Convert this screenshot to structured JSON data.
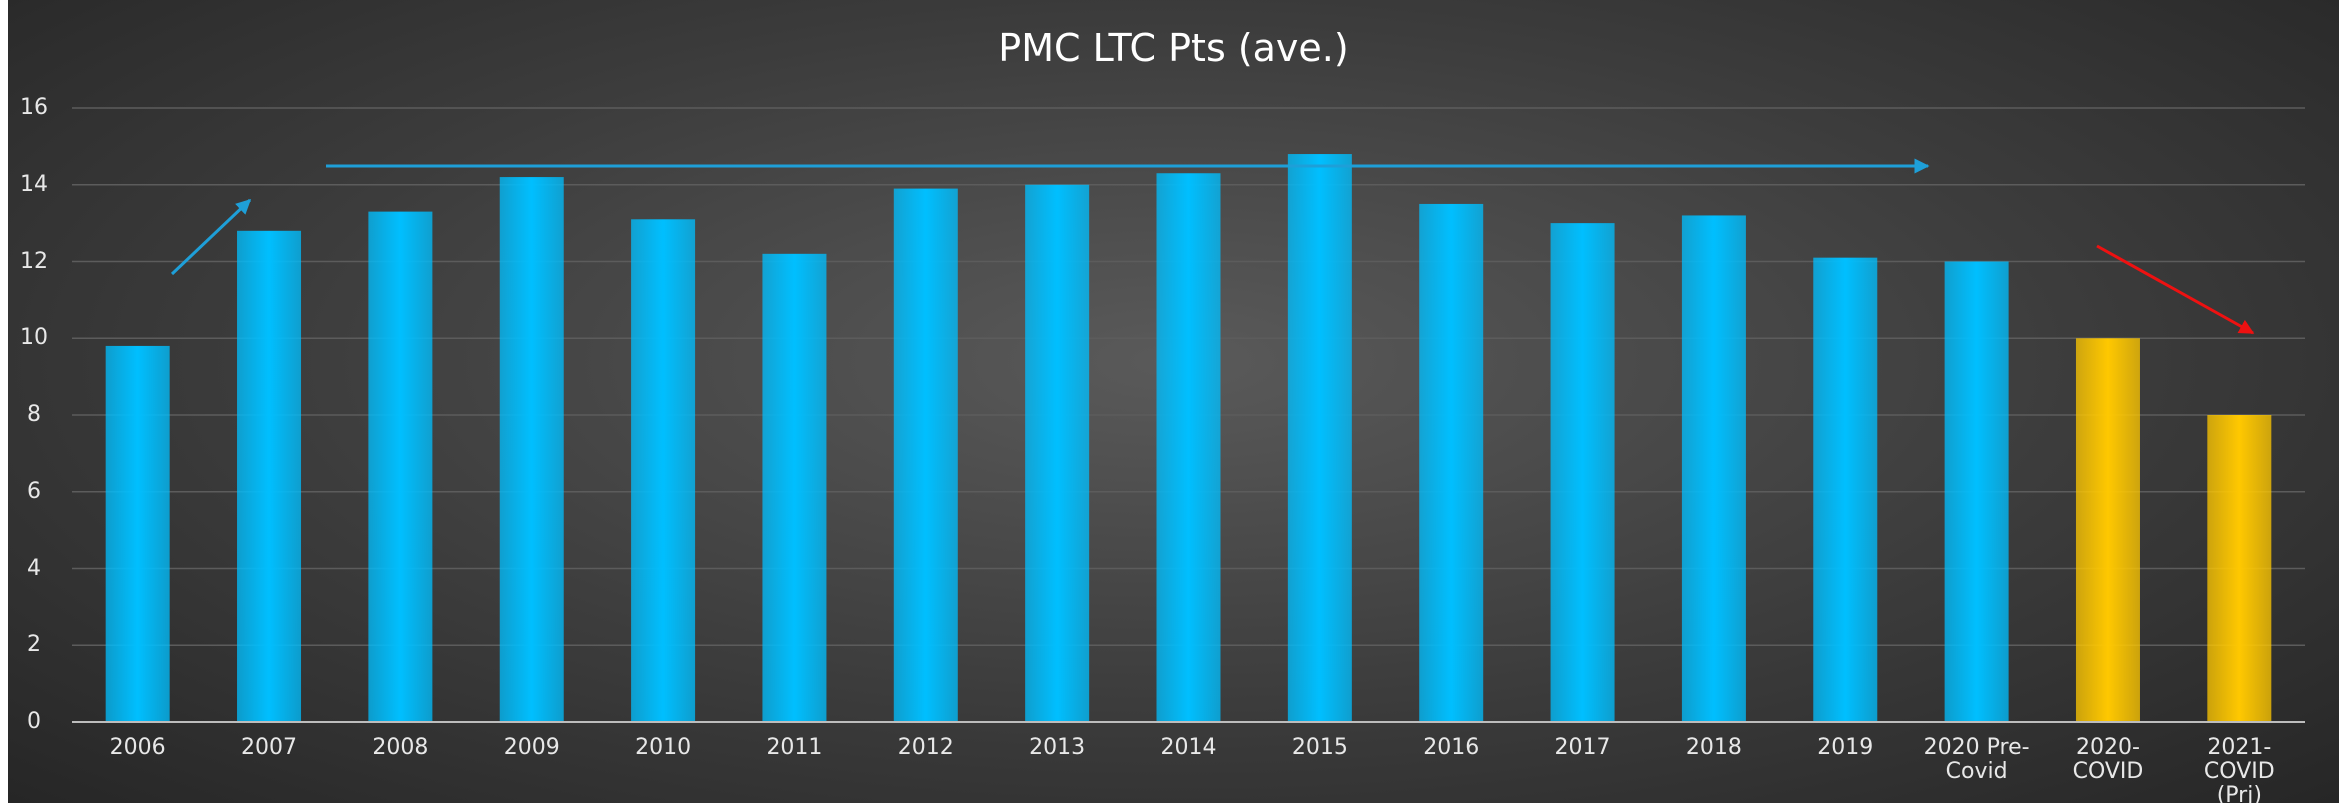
{
  "chart_data": {
    "type": "bar",
    "title": "PMC LTC Pts (ave.)",
    "categories": [
      "2006",
      "2007",
      "2008",
      "2009",
      "2010",
      "2011",
      "2012",
      "2013",
      "2014",
      "2015",
      "2016",
      "2017",
      "2018",
      "2019",
      "2020 Pre-Covid",
      "2020-COVID",
      "2021-COVID (Prj)"
    ],
    "values": [
      9.8,
      12.8,
      13.3,
      14.2,
      13.1,
      12.2,
      13.9,
      14.0,
      14.3,
      14.8,
      13.5,
      13.0,
      13.2,
      12.1,
      12.0,
      10.0,
      8.0
    ],
    "colors": [
      "#00bfff",
      "#00bfff",
      "#00bfff",
      "#00bfff",
      "#00bfff",
      "#00bfff",
      "#00bfff",
      "#00bfff",
      "#00bfff",
      "#00bfff",
      "#00bfff",
      "#00bfff",
      "#00bfff",
      "#00bfff",
      "#00bfff",
      "#ffc800",
      "#ffc800"
    ],
    "ylim": [
      0,
      16
    ],
    "yticks": [
      0,
      2,
      4,
      6,
      8,
      10,
      12,
      14,
      16
    ],
    "grid": true
  }
}
